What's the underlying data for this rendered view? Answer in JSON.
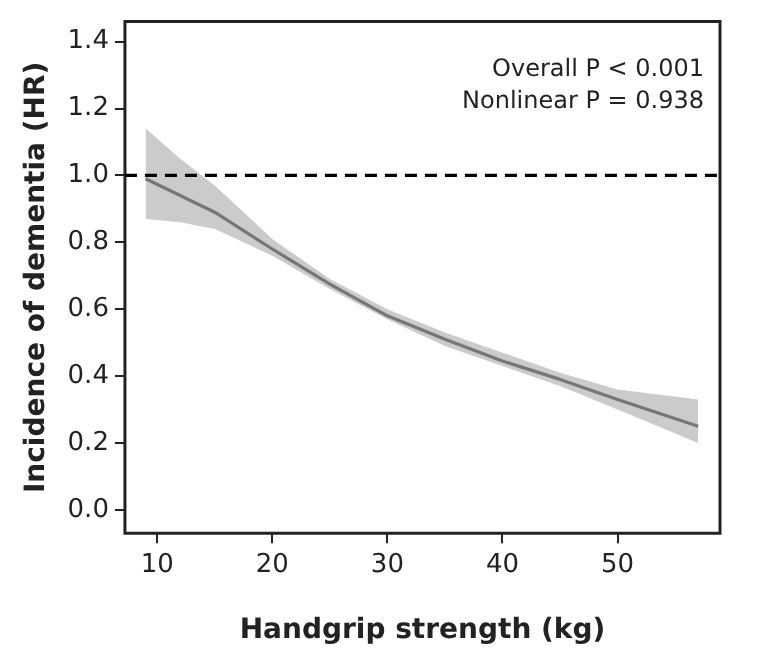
{
  "chart_data": {
    "type": "line",
    "xlabel": "Handgrip strength (kg)",
    "ylabel": "Incidence of dementia (HR)",
    "xlim": [
      7.2,
      58.9
    ],
    "xticks": [
      10,
      20,
      30,
      40,
      50
    ],
    "ylim": [
      -0.07,
      1.46
    ],
    "yticks": [
      {
        "value": 0,
        "label": "0.0"
      },
      0.2,
      0.4,
      0.6,
      0.8,
      {
        "value": 1,
        "label": "1.0"
      },
      1.2,
      1.4
    ],
    "grid": false,
    "legend": false,
    "marker": "none",
    "line_style": "solid",
    "series": [
      {
        "color": "#444444",
        "x": [
          9,
          12,
          15,
          20,
          25,
          30,
          35,
          40,
          45,
          50,
          57
        ],
        "values": [
          0.99,
          0.94,
          0.89,
          0.78,
          0.675,
          0.58,
          0.51,
          0.445,
          0.39,
          0.33,
          0.25
        ],
        "lower": [
          0.87,
          0.86,
          0.84,
          0.76,
          0.66,
          0.57,
          0.49,
          0.43,
          0.37,
          0.3,
          0.2
        ],
        "upper": [
          1.14,
          1.05,
          0.97,
          0.81,
          0.69,
          0.6,
          0.53,
          0.47,
          0.41,
          0.36,
          0.33
        ]
      }
    ],
    "ref_lines": [
      {
        "axis": "y",
        "value": 1.0,
        "color": "#000000",
        "line_style": "dashed"
      }
    ],
    "annotations": [
      "Overall P < 0.001",
      "Nonlinear P = 0.938"
    ]
  }
}
